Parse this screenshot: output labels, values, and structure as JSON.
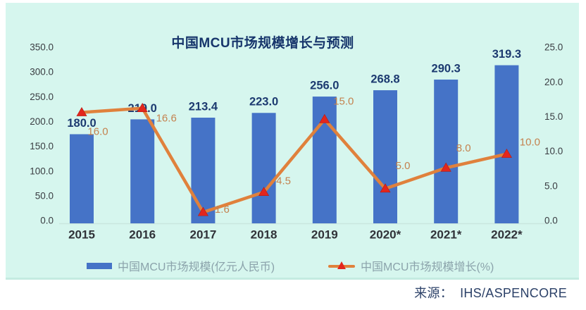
{
  "chart_data": {
    "type": "bar",
    "title": "中国MCU市场规模增长与预测",
    "categories": [
      "2015",
      "2016",
      "2017",
      "2018",
      "2019",
      "2020*",
      "2021*",
      "2022*"
    ],
    "series": [
      {
        "name": "中国MCU市场规模(亿元人民币)",
        "type": "bar",
        "axis": "left",
        "color": "#4573c7",
        "values": [
          180.0,
          210.0,
          213.4,
          223.0,
          256.0,
          268.8,
          290.3,
          319.3
        ]
      },
      {
        "name": "中国MCU市场规模增长(%)",
        "type": "line",
        "axis": "right",
        "color": "#e0813c",
        "marker": "triangle",
        "marker_color": "#e3261d",
        "values": [
          16.0,
          16.6,
          1.6,
          4.5,
          15.0,
          5.0,
          8.0,
          10.0
        ]
      }
    ],
    "left_axis": {
      "min": 0,
      "max": 350,
      "step": 50,
      "ticks": [
        "350.0",
        "300.0",
        "250.0",
        "200.0",
        "150.0",
        "100.0",
        "50.0",
        "0.0"
      ]
    },
    "right_axis": {
      "min": 0,
      "max": 25,
      "step": 5,
      "ticks": [
        "25.0",
        "20.0",
        "15.0",
        "10.0",
        "5.0",
        "0.0"
      ]
    },
    "grid": false,
    "legend_position": "bottom",
    "data_labels_shown": true
  },
  "colors": {
    "panel_bg": "#d6f6ee",
    "bar": "#4573c7",
    "line": "#e0813c",
    "marker": "#e3261d",
    "title_text": "#16356b",
    "bar_value_text": "#1c3a70",
    "line_value_text": "#c4824f",
    "axis_tick_text": "#3a3d42",
    "category_text": "#303238",
    "legend_text": "#8ba3ab",
    "source_text": "#2c4168",
    "baseline": "#c9e6de"
  },
  "source": {
    "label": "来源：",
    "value": "IHS/ASPENCORE"
  }
}
